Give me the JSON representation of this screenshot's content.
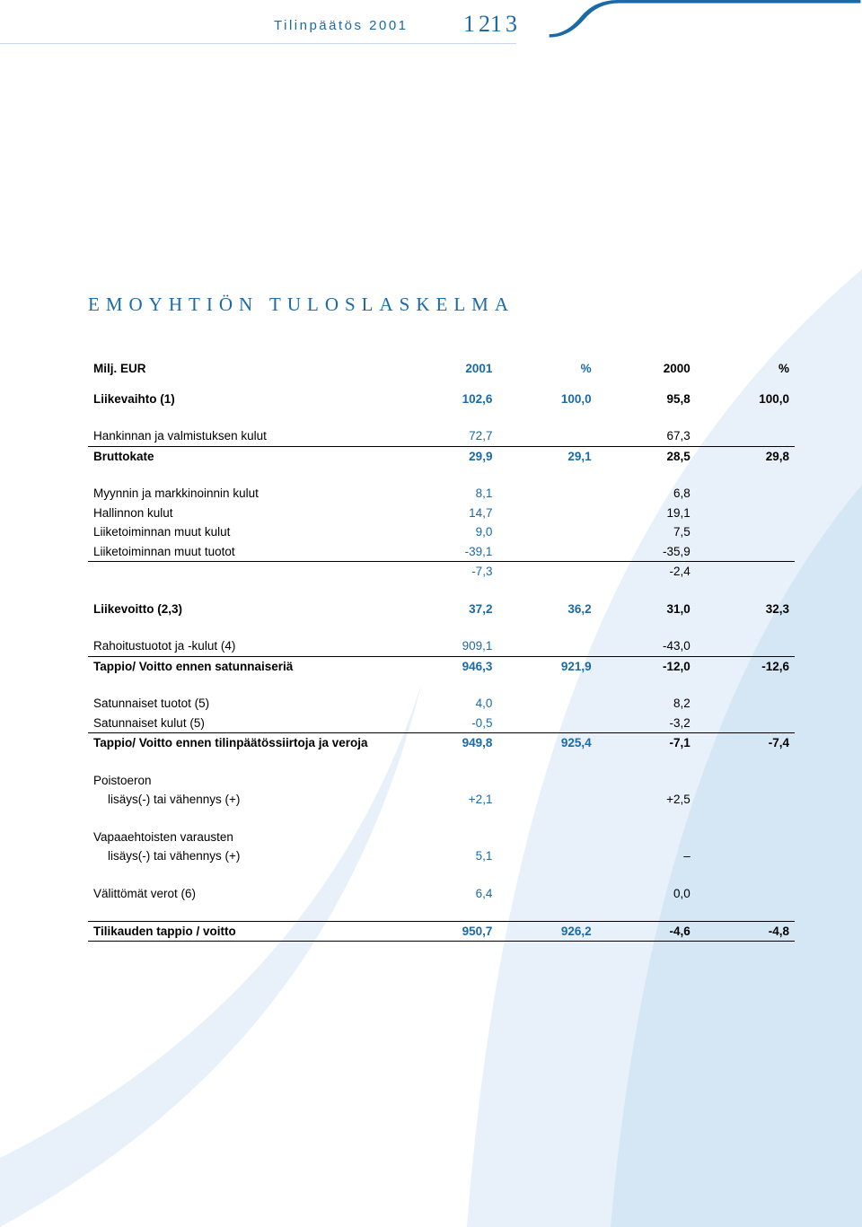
{
  "header": {
    "title": "Tilinpäätös 2001",
    "page_left": "12",
    "page_right": "13"
  },
  "colors": {
    "accent": "#1a6aa8",
    "text": "#000000",
    "rule": "#000000",
    "header_underline": "#c9d8e6",
    "background": "#ffffff",
    "swoosh_light": "#e8f1f9",
    "swoosh_mid": "#c5dff2"
  },
  "section_title": "EMOYHTIÖN TULOSLASKELMA",
  "table": {
    "unit_label": "Milj. EUR",
    "col_headers": [
      "2001",
      "%",
      "2000",
      "%"
    ],
    "groups": [
      {
        "rows": [
          {
            "label": "Liikevaihto (1)",
            "bold": true,
            "vals": [
              "102,6",
              "100,0",
              "95,8",
              "100,0"
            ]
          }
        ]
      },
      {
        "rows": [
          {
            "label": "Hankinnan ja valmistuksen kulut",
            "vals": [
              "72,7",
              "",
              "67,3",
              ""
            ]
          },
          {
            "label": "Bruttokate",
            "bold": true,
            "rule_top": true,
            "vals": [
              "29,9",
              "29,1",
              "28,5",
              "29,8"
            ]
          }
        ]
      },
      {
        "rows": [
          {
            "label": "Myynnin ja markkinoinnin kulut",
            "vals": [
              "8,1",
              "",
              "6,8",
              ""
            ]
          },
          {
            "label": "Hallinnon kulut",
            "vals": [
              "14,7",
              "",
              "19,1",
              ""
            ]
          },
          {
            "label": "Liiketoiminnan muut kulut",
            "vals": [
              "9,0",
              "",
              "7,5",
              ""
            ]
          },
          {
            "label": "Liiketoiminnan muut tuotot",
            "vals": [
              "-39,1",
              "",
              "-35,9",
              ""
            ]
          },
          {
            "label": "",
            "rule_top": true,
            "vals": [
              "-7,3",
              "",
              "-2,4",
              ""
            ]
          }
        ]
      },
      {
        "rows": [
          {
            "label": "Liikevoitto (2,3)",
            "bold": true,
            "vals": [
              "37,2",
              "36,2",
              "31,0",
              "32,3"
            ]
          }
        ]
      },
      {
        "rows": [
          {
            "label": "Rahoitustuotot ja -kulut (4)",
            "vals": [
              "909,1",
              "",
              "-43,0",
              ""
            ]
          },
          {
            "label": "Tappio/ Voitto ennen satunnaiseriä",
            "bold": true,
            "rule_top": true,
            "vals": [
              "946,3",
              "921,9",
              "-12,0",
              "-12,6"
            ]
          }
        ]
      },
      {
        "rows": [
          {
            "label": "Satunnaiset tuotot (5)",
            "vals": [
              "4,0",
              "",
              "8,2",
              ""
            ]
          },
          {
            "label": "Satunnaiset kulut (5)",
            "vals": [
              "-0,5",
              "",
              "-3,2",
              ""
            ]
          },
          {
            "label": "Tappio/ Voitto ennen tilinpäätössiirtoja ja veroja",
            "bold": true,
            "rule_top": true,
            "vals": [
              "949,8",
              "925,4",
              "-7,1",
              "-7,4"
            ]
          }
        ]
      },
      {
        "rows": [
          {
            "label": "Poistoeron",
            "vals": [
              "",
              "",
              "",
              ""
            ]
          },
          {
            "label": "lisäys(-) tai vähennys (+)",
            "indent": true,
            "vals": [
              "+2,1",
              "",
              "+2,5",
              ""
            ]
          }
        ]
      },
      {
        "rows": [
          {
            "label": "Vapaaehtoisten varausten",
            "vals": [
              "",
              "",
              "",
              ""
            ]
          },
          {
            "label": "lisäys(-) tai vähennys (+)",
            "indent": true,
            "vals": [
              "5,1",
              "",
              "–",
              ""
            ]
          }
        ]
      },
      {
        "rows": [
          {
            "label": "Välittömät verot (6)",
            "vals": [
              "6,4",
              "",
              "0,0",
              ""
            ]
          }
        ]
      },
      {
        "rows": [
          {
            "label": "Tilikauden tappio / voitto",
            "bold": true,
            "rule_top": true,
            "rule_bot": true,
            "vals": [
              "950,7",
              "926,2",
              "-4,6",
              "-4,8"
            ]
          }
        ]
      }
    ]
  }
}
